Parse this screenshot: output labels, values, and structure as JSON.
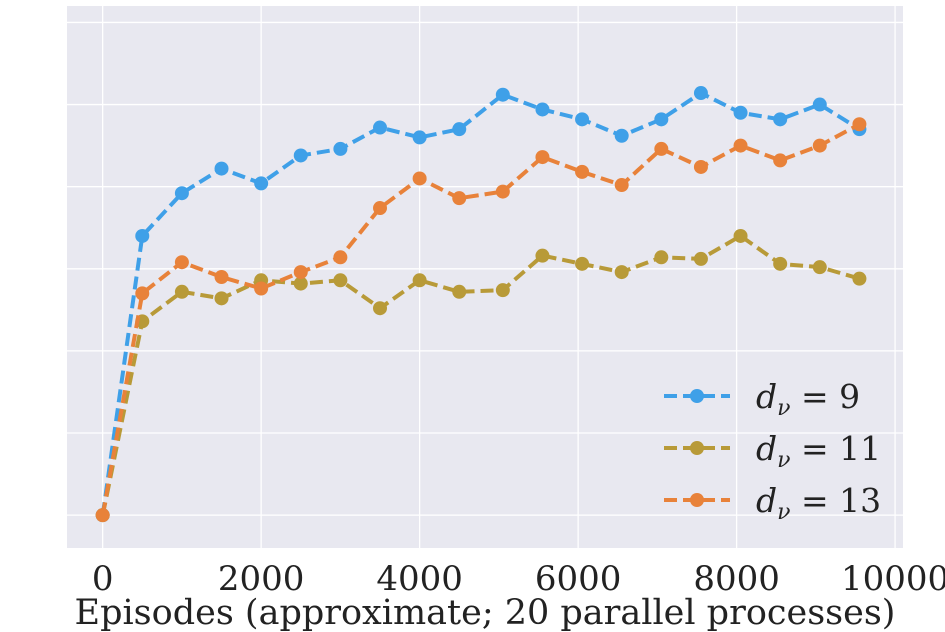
{
  "chart_data": {
    "type": "line",
    "title": "",
    "xlabel": "Episodes (approximate; 20 parallel processes)",
    "ylabel": "",
    "xlim": [
      -450,
      10100
    ],
    "ylim": [
      -0.2,
      3.1
    ],
    "x_ticks": [
      0,
      2000,
      4000,
      6000,
      8000,
      10000
    ],
    "x_tick_labels": [
      "0",
      "2000",
      "4000",
      "6000",
      "8000",
      "10000"
    ],
    "y_grid": [
      0,
      0.5,
      1.0,
      1.5,
      2.0,
      2.5,
      3.0
    ],
    "y_tick_labels_visible": false,
    "grid": true,
    "legend_position": "lower-right",
    "series": [
      {
        "name": "d_ν = 9",
        "label_base": "d",
        "label_sub": "ν",
        "label_rhs": " = 9",
        "color": "#3fa0e8",
        "x": [
          0,
          500,
          1000,
          1500,
          2000,
          2500,
          3000,
          3500,
          4000,
          4500,
          5050,
          5550,
          6050,
          6550,
          7050,
          7550,
          8050,
          8550,
          9050,
          9550
        ],
        "values": [
          0.0,
          1.7,
          1.96,
          2.11,
          2.02,
          2.19,
          2.23,
          2.36,
          2.3,
          2.35,
          2.56,
          2.47,
          2.41,
          2.31,
          2.41,
          2.57,
          2.45,
          2.41,
          2.5,
          2.35
        ]
      },
      {
        "name": "d_ν = 11",
        "label_base": "d",
        "label_sub": "ν",
        "label_rhs": " = 11",
        "color": "#b89a38",
        "x": [
          0,
          500,
          1000,
          1500,
          2000,
          2500,
          3000,
          3500,
          4000,
          4500,
          5050,
          5550,
          6050,
          6550,
          7050,
          7550,
          8050,
          8550,
          9050,
          9550
        ],
        "values": [
          0.0,
          1.18,
          1.36,
          1.32,
          1.43,
          1.41,
          1.43,
          1.26,
          1.43,
          1.36,
          1.37,
          1.58,
          1.53,
          1.48,
          1.57,
          1.56,
          1.7,
          1.53,
          1.51,
          1.44
        ]
      },
      {
        "name": "d_ν = 13",
        "label_base": "d",
        "label_sub": "ν",
        "label_rhs": " = 13",
        "color": "#e8823a",
        "x": [
          0,
          500,
          1000,
          1500,
          2000,
          2500,
          3000,
          3500,
          4000,
          4500,
          5050,
          5550,
          6050,
          6550,
          7050,
          7550,
          8050,
          8550,
          9050,
          9550
        ],
        "values": [
          0.0,
          1.35,
          1.54,
          1.45,
          1.38,
          1.48,
          1.57,
          1.87,
          2.05,
          1.93,
          1.97,
          2.18,
          2.09,
          2.01,
          2.23,
          2.12,
          2.25,
          2.16,
          2.25,
          2.38
        ]
      }
    ]
  }
}
